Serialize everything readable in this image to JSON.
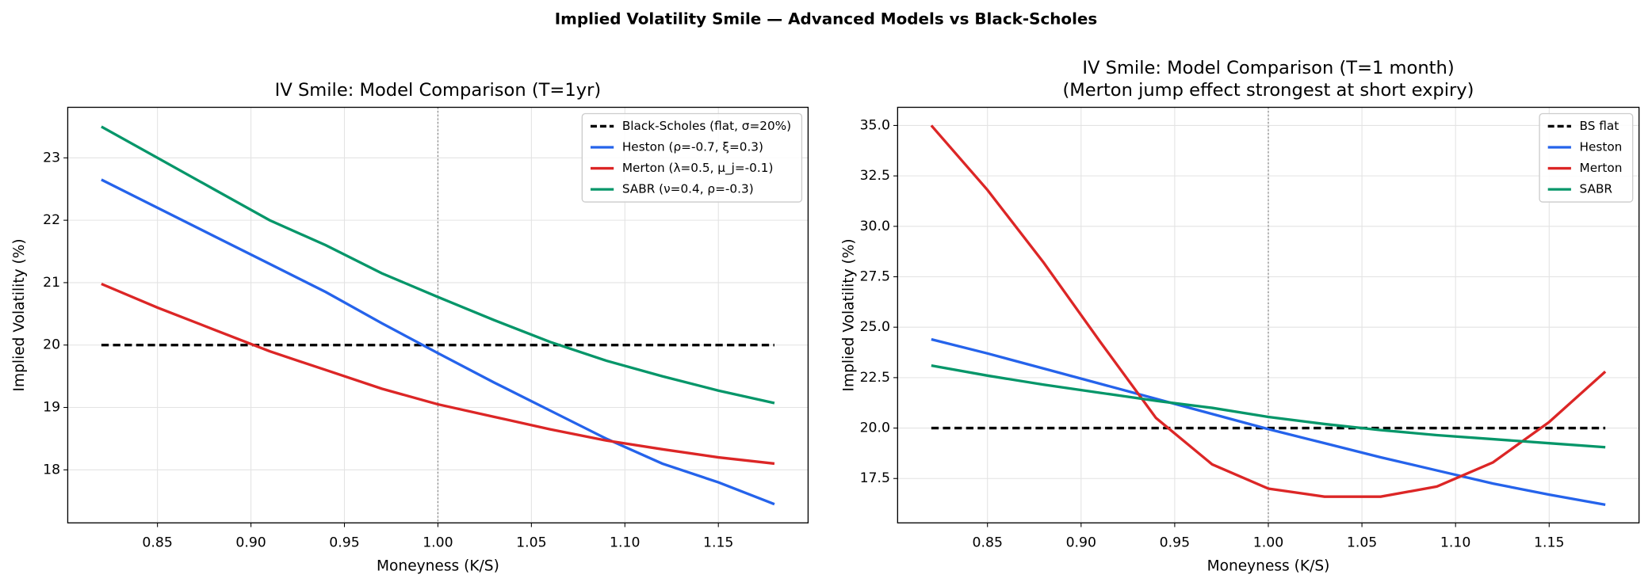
{
  "title": "Implied Volatility Smile — Advanced Models vs Black-Scholes",
  "chart_data": [
    {
      "type": "line",
      "title": [
        "IV Smile: Model Comparison (T=1yr)"
      ],
      "x_label": "Moneyness (K/S)",
      "y_label": "Implied Volatility (%)",
      "x": [
        0.82,
        0.85,
        0.88,
        0.91,
        0.94,
        0.97,
        1.0,
        1.03,
        1.06,
        1.09,
        1.12,
        1.15,
        1.18
      ],
      "series": [
        {
          "name": "Black-Scholes (flat, σ=20%)",
          "color": "#000000",
          "linestyle": "dashed",
          "values": [
            20,
            20,
            20,
            20,
            20,
            20,
            20,
            20,
            20,
            20,
            20,
            20,
            20
          ]
        },
        {
          "name": "Heston (ρ=-0.7, ξ=0.3)",
          "color": "#2563eb",
          "linestyle": "solid",
          "values": [
            22.65,
            22.2,
            21.75,
            21.3,
            20.85,
            20.35,
            19.87,
            19.4,
            18.95,
            18.5,
            18.1,
            17.8,
            17.45
          ]
        },
        {
          "name": "Merton (λ=0.5, μ_j=-0.1)",
          "color": "#dc2626",
          "linestyle": "solid",
          "values": [
            20.98,
            20.6,
            20.25,
            19.9,
            19.6,
            19.3,
            19.05,
            18.85,
            18.65,
            18.47,
            18.33,
            18.2,
            18.1
          ]
        },
        {
          "name": "SABR (ν=0.4, ρ=-0.3)",
          "color": "#059669",
          "linestyle": "solid",
          "values": [
            23.5,
            23.0,
            22.5,
            22.0,
            21.6,
            21.15,
            20.77,
            20.4,
            20.05,
            19.75,
            19.5,
            19.27,
            19.07
          ]
        }
      ],
      "vline": 1.0,
      "xlim": [
        0.802,
        1.198
      ],
      "xticks": [
        0.85,
        {
          "value": 0.9,
          "label": "0.90"
        },
        0.95,
        {
          "value": 1.0,
          "label": "1.00"
        },
        1.05,
        {
          "value": 1.1,
          "label": "1.10"
        },
        1.15
      ],
      "ylim": [
        17.15,
        23.81
      ],
      "yticks": [
        18,
        19,
        20,
        21,
        22,
        23
      ],
      "grid": true,
      "legend": "upper right"
    },
    {
      "type": "line",
      "title": [
        "IV Smile: Model Comparison (T=1 month)",
        "(Merton jump effect strongest at short expiry)"
      ],
      "x_label": "Moneyness (K/S)",
      "y_label": "Implied Volatility (%)",
      "x": [
        0.82,
        0.85,
        0.88,
        0.91,
        0.94,
        0.97,
        1.0,
        1.03,
        1.06,
        1.09,
        1.12,
        1.15,
        1.18
      ],
      "series": [
        {
          "name": "BS flat",
          "color": "#000000",
          "linestyle": "dashed",
          "values": [
            20,
            20,
            20,
            20,
            20,
            20,
            20,
            20,
            20,
            20,
            20,
            20,
            20
          ]
        },
        {
          "name": "Heston",
          "color": "#2563eb",
          "linestyle": "solid",
          "values": [
            24.4,
            23.7,
            22.95,
            22.2,
            21.45,
            20.7,
            19.95,
            19.25,
            18.55,
            17.9,
            17.25,
            16.7,
            16.2
          ]
        },
        {
          "name": "Merton",
          "color": "#dc2626",
          "linestyle": "solid",
          "values": [
            35.0,
            31.8,
            28.2,
            24.3,
            20.5,
            18.2,
            17.0,
            16.6,
            16.6,
            17.1,
            18.3,
            20.3,
            22.8
          ]
        },
        {
          "name": "SABR",
          "color": "#059669",
          "linestyle": "solid",
          "values": [
            23.1,
            22.6,
            22.15,
            21.75,
            21.35,
            21.0,
            20.55,
            20.2,
            19.9,
            19.65,
            19.45,
            19.25,
            19.05
          ]
        }
      ],
      "vline": 1.0,
      "xlim": [
        0.802,
        1.198
      ],
      "xticks": [
        0.85,
        {
          "value": 0.9,
          "label": "0.90"
        },
        0.95,
        {
          "value": 1.0,
          "label": "1.00"
        },
        1.05,
        {
          "value": 1.1,
          "label": "1.10"
        },
        1.15
      ],
      "ylim": [
        15.3,
        35.9
      ],
      "yticks": [
        {
          "value": 17.5,
          "label": "17.5"
        },
        {
          "value": 20,
          "label": "20.0"
        },
        {
          "value": 22.5,
          "label": "22.5"
        },
        {
          "value": 25,
          "label": "25.0"
        },
        {
          "value": 27.5,
          "label": "27.5"
        },
        {
          "value": 30,
          "label": "30.0"
        },
        {
          "value": 32.5,
          "label": "32.5"
        },
        {
          "value": 35,
          "label": "35.0"
        }
      ],
      "grid": true,
      "legend": "upper right"
    }
  ]
}
